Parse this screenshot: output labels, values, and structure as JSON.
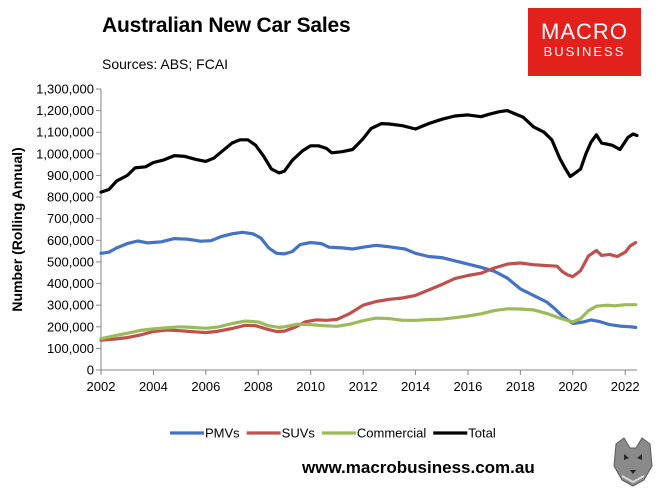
{
  "header": {
    "title": "Australian New Car Sales",
    "subtitle": "Sources: ABS; FCAI"
  },
  "logo": {
    "line1": "MACRO",
    "line2": "BUSINESS",
    "color": "#e2201c"
  },
  "footer": {
    "website": "www.macrobusiness.com.au"
  },
  "chart_data": {
    "type": "line",
    "title": "Australian New Car Sales",
    "xlabel": "",
    "ylabel": "Number (Rolling Annual)",
    "xlim": [
      2002,
      2022.45
    ],
    "ylim": [
      0,
      1300000
    ],
    "x_ticks": [
      2002,
      2004,
      2006,
      2008,
      2010,
      2012,
      2014,
      2016,
      2018,
      2020,
      2022
    ],
    "y_ticks": [
      0,
      100000,
      200000,
      300000,
      400000,
      500000,
      600000,
      700000,
      800000,
      900000,
      1000000,
      1100000,
      1200000,
      1300000
    ],
    "y_tick_labels": [
      "0",
      "100,000",
      "200,000",
      "300,000",
      "400,000",
      "500,000",
      "600,000",
      "700,000",
      "800,000",
      "900,000",
      "1,000,000",
      "1,100,000",
      "1,200,000",
      "1,300,000"
    ],
    "grid": false,
    "legend_position": "bottom",
    "series": [
      {
        "name": "PMVs",
        "color": "#4472c4",
        "points": [
          [
            2002,
            540000
          ],
          [
            2002.3,
            545000
          ],
          [
            2002.6,
            565000
          ],
          [
            2003,
            585000
          ],
          [
            2003.4,
            597000
          ],
          [
            2003.8,
            588000
          ],
          [
            2004.3,
            593000
          ],
          [
            2004.8,
            608000
          ],
          [
            2005.3,
            605000
          ],
          [
            2005.8,
            596000
          ],
          [
            2006.2,
            598000
          ],
          [
            2006.6,
            618000
          ],
          [
            2007,
            630000
          ],
          [
            2007.4,
            637000
          ],
          [
            2007.8,
            630000
          ],
          [
            2008.1,
            610000
          ],
          [
            2008.4,
            565000
          ],
          [
            2008.7,
            540000
          ],
          [
            2009,
            537000
          ],
          [
            2009.3,
            548000
          ],
          [
            2009.6,
            580000
          ],
          [
            2010,
            590000
          ],
          [
            2010.4,
            585000
          ],
          [
            2010.7,
            568000
          ],
          [
            2011.2,
            565000
          ],
          [
            2011.6,
            560000
          ],
          [
            2012,
            568000
          ],
          [
            2012.5,
            577000
          ],
          [
            2013,
            570000
          ],
          [
            2013.6,
            560000
          ],
          [
            2014,
            540000
          ],
          [
            2014.5,
            525000
          ],
          [
            2015,
            520000
          ],
          [
            2015.5,
            505000
          ],
          [
            2016,
            490000
          ],
          [
            2016.5,
            475000
          ],
          [
            2017,
            457000
          ],
          [
            2017.5,
            425000
          ],
          [
            2018,
            375000
          ],
          [
            2018.5,
            345000
          ],
          [
            2019,
            315000
          ],
          [
            2019.3,
            285000
          ],
          [
            2019.6,
            250000
          ],
          [
            2020,
            215000
          ],
          [
            2020.4,
            222000
          ],
          [
            2020.7,
            232000
          ],
          [
            2021,
            225000
          ],
          [
            2021.4,
            210000
          ],
          [
            2021.8,
            203000
          ],
          [
            2022.2,
            200000
          ],
          [
            2022.4,
            197000
          ]
        ]
      },
      {
        "name": "SUVs",
        "color": "#c0504d",
        "points": [
          [
            2002,
            138000
          ],
          [
            2002.5,
            143000
          ],
          [
            2003,
            150000
          ],
          [
            2003.5,
            162000
          ],
          [
            2004,
            178000
          ],
          [
            2004.5,
            185000
          ],
          [
            2005,
            182000
          ],
          [
            2005.5,
            177000
          ],
          [
            2006,
            173000
          ],
          [
            2006.5,
            180000
          ],
          [
            2007,
            192000
          ],
          [
            2007.5,
            207000
          ],
          [
            2007.9,
            205000
          ],
          [
            2008.3,
            190000
          ],
          [
            2008.7,
            178000
          ],
          [
            2009,
            180000
          ],
          [
            2009.4,
            198000
          ],
          [
            2009.8,
            223000
          ],
          [
            2010.2,
            232000
          ],
          [
            2010.6,
            230000
          ],
          [
            2011,
            234000
          ],
          [
            2011.5,
            262000
          ],
          [
            2012,
            300000
          ],
          [
            2012.5,
            317000
          ],
          [
            2013,
            327000
          ],
          [
            2013.5,
            333000
          ],
          [
            2014,
            345000
          ],
          [
            2014.5,
            370000
          ],
          [
            2015,
            395000
          ],
          [
            2015.5,
            423000
          ],
          [
            2016,
            437000
          ],
          [
            2016.5,
            448000
          ],
          [
            2017,
            472000
          ],
          [
            2017.5,
            490000
          ],
          [
            2018,
            495000
          ],
          [
            2018.5,
            487000
          ],
          [
            2019,
            483000
          ],
          [
            2019.4,
            480000
          ],
          [
            2019.6,
            455000
          ],
          [
            2019.8,
            440000
          ],
          [
            2020,
            432000
          ],
          [
            2020.3,
            460000
          ],
          [
            2020.6,
            528000
          ],
          [
            2020.9,
            553000
          ],
          [
            2021.1,
            530000
          ],
          [
            2021.4,
            535000
          ],
          [
            2021.7,
            525000
          ],
          [
            2022,
            545000
          ],
          [
            2022.2,
            575000
          ],
          [
            2022.4,
            590000
          ]
        ]
      },
      {
        "name": "Commercial",
        "color": "#9bbb59",
        "points": [
          [
            2002,
            145000
          ],
          [
            2002.5,
            158000
          ],
          [
            2003,
            170000
          ],
          [
            2003.5,
            183000
          ],
          [
            2004,
            190000
          ],
          [
            2004.5,
            195000
          ],
          [
            2005,
            200000
          ],
          [
            2005.5,
            197000
          ],
          [
            2006,
            193000
          ],
          [
            2006.5,
            200000
          ],
          [
            2007,
            215000
          ],
          [
            2007.5,
            226000
          ],
          [
            2008,
            222000
          ],
          [
            2008.4,
            205000
          ],
          [
            2008.8,
            197000
          ],
          [
            2009,
            200000
          ],
          [
            2009.5,
            212000
          ],
          [
            2010,
            210000
          ],
          [
            2010.5,
            205000
          ],
          [
            2011,
            202000
          ],
          [
            2011.5,
            212000
          ],
          [
            2012,
            228000
          ],
          [
            2012.5,
            240000
          ],
          [
            2013,
            238000
          ],
          [
            2013.5,
            230000
          ],
          [
            2014,
            230000
          ],
          [
            2014.5,
            233000
          ],
          [
            2015,
            235000
          ],
          [
            2015.5,
            242000
          ],
          [
            2016,
            250000
          ],
          [
            2016.5,
            260000
          ],
          [
            2017,
            275000
          ],
          [
            2017.5,
            283000
          ],
          [
            2018,
            282000
          ],
          [
            2018.5,
            278000
          ],
          [
            2019,
            262000
          ],
          [
            2019.5,
            240000
          ],
          [
            2020,
            222000
          ],
          [
            2020.3,
            238000
          ],
          [
            2020.6,
            275000
          ],
          [
            2020.9,
            295000
          ],
          [
            2021.3,
            300000
          ],
          [
            2021.6,
            297000
          ],
          [
            2022,
            302000
          ],
          [
            2022.4,
            302000
          ]
        ]
      },
      {
        "name": "Total",
        "color": "#000000",
        "points": [
          [
            2002,
            823000
          ],
          [
            2002.3,
            835000
          ],
          [
            2002.6,
            875000
          ],
          [
            2003,
            900000
          ],
          [
            2003.3,
            935000
          ],
          [
            2003.7,
            940000
          ],
          [
            2004,
            960000
          ],
          [
            2004.4,
            972000
          ],
          [
            2004.8,
            992000
          ],
          [
            2005.2,
            988000
          ],
          [
            2005.6,
            975000
          ],
          [
            2006,
            965000
          ],
          [
            2006.3,
            980000
          ],
          [
            2006.6,
            1010000
          ],
          [
            2007,
            1050000
          ],
          [
            2007.3,
            1065000
          ],
          [
            2007.6,
            1065000
          ],
          [
            2007.9,
            1040000
          ],
          [
            2008.2,
            990000
          ],
          [
            2008.5,
            930000
          ],
          [
            2008.8,
            912000
          ],
          [
            2009,
            920000
          ],
          [
            2009.3,
            970000
          ],
          [
            2009.7,
            1015000
          ],
          [
            2010,
            1037000
          ],
          [
            2010.3,
            1037000
          ],
          [
            2010.6,
            1025000
          ],
          [
            2010.8,
            1005000
          ],
          [
            2011.2,
            1010000
          ],
          [
            2011.6,
            1020000
          ],
          [
            2012,
            1070000
          ],
          [
            2012.3,
            1117000
          ],
          [
            2012.7,
            1140000
          ],
          [
            2013,
            1138000
          ],
          [
            2013.5,
            1130000
          ],
          [
            2014,
            1115000
          ],
          [
            2014.5,
            1140000
          ],
          [
            2015,
            1160000
          ],
          [
            2015.5,
            1175000
          ],
          [
            2016,
            1180000
          ],
          [
            2016.5,
            1172000
          ],
          [
            2016.8,
            1183000
          ],
          [
            2017.2,
            1195000
          ],
          [
            2017.5,
            1200000
          ],
          [
            2017.8,
            1185000
          ],
          [
            2018.1,
            1170000
          ],
          [
            2018.5,
            1125000
          ],
          [
            2018.9,
            1100000
          ],
          [
            2019.2,
            1065000
          ],
          [
            2019.5,
            980000
          ],
          [
            2019.7,
            935000
          ],
          [
            2019.9,
            895000
          ],
          [
            2020.1,
            912000
          ],
          [
            2020.3,
            930000
          ],
          [
            2020.5,
            1000000
          ],
          [
            2020.7,
            1055000
          ],
          [
            2020.9,
            1088000
          ],
          [
            2021.1,
            1050000
          ],
          [
            2021.5,
            1040000
          ],
          [
            2021.8,
            1020000
          ],
          [
            2022.1,
            1075000
          ],
          [
            2022.3,
            1092000
          ],
          [
            2022.45,
            1085000
          ]
        ]
      }
    ]
  }
}
